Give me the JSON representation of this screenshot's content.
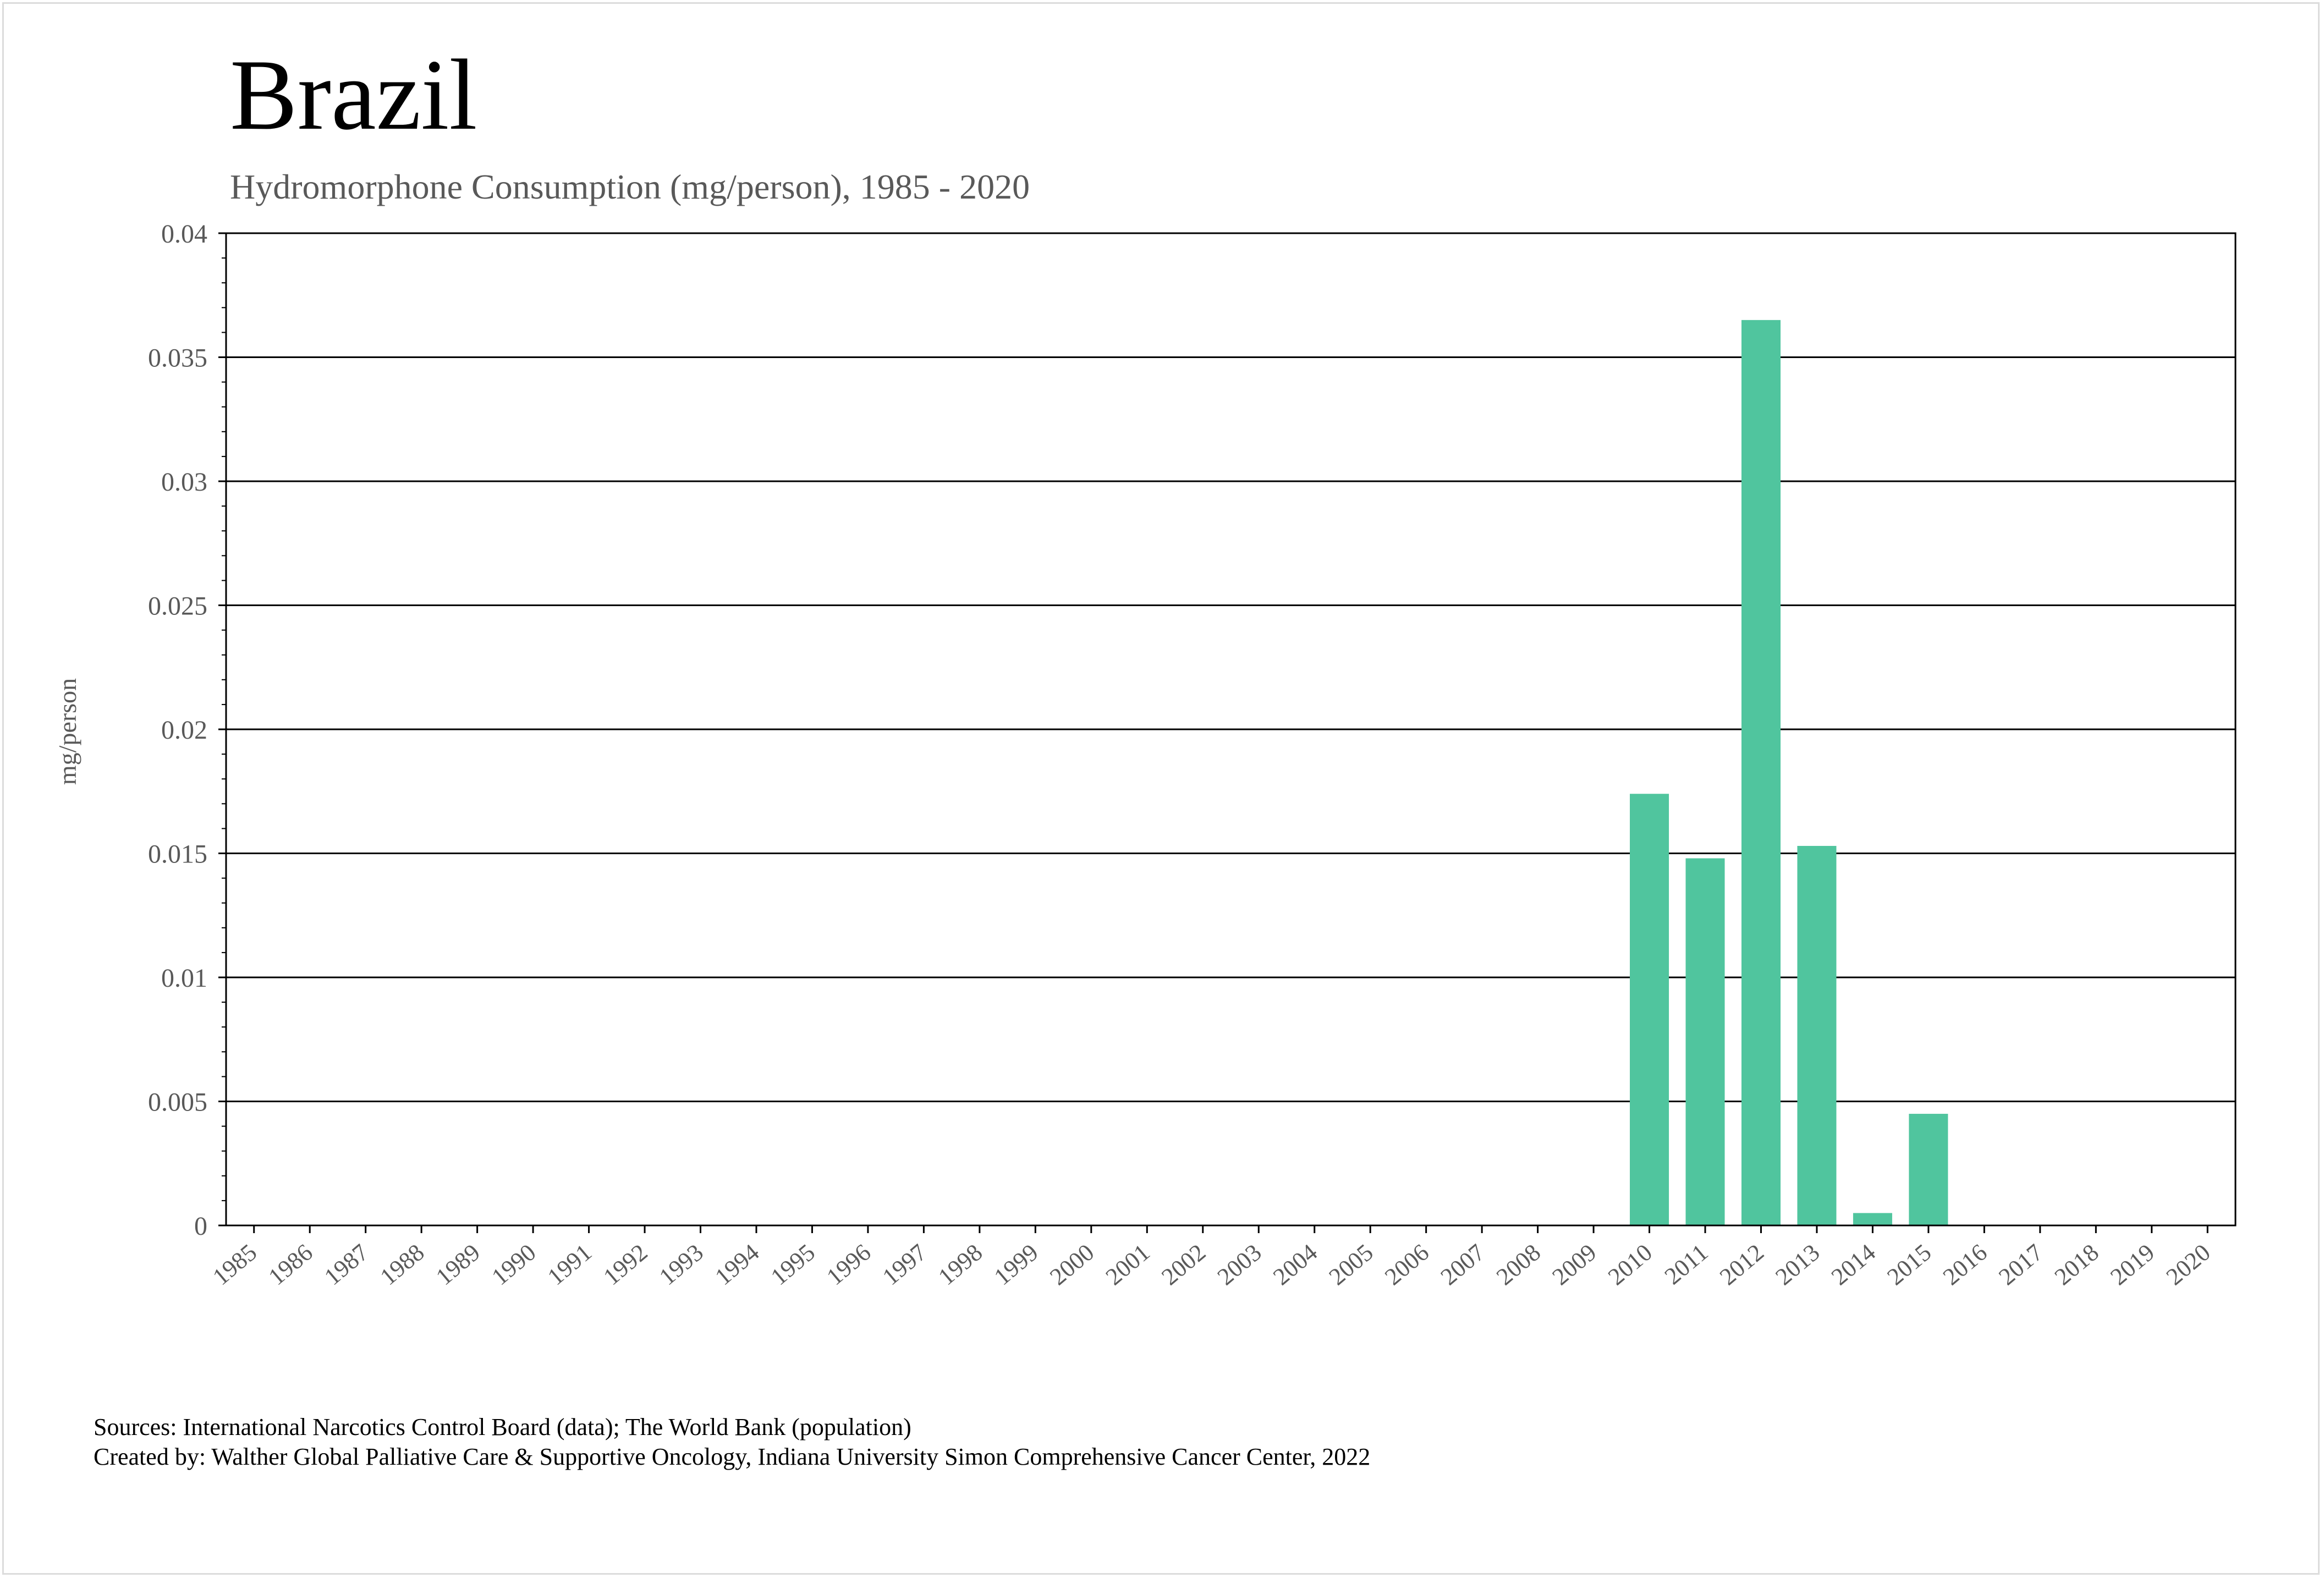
{
  "chart_data": {
    "type": "bar",
    "title": "Brazil",
    "subtitle": "Hydromorphone Consumption (mg/person), 1985 - 2020",
    "xlabel": "",
    "ylabel": "mg/person",
    "ylim": [
      0,
      0.04
    ],
    "y_ticks": [
      "0",
      "0.005",
      "0.01",
      "0.015",
      "0.02",
      "0.025",
      "0.03",
      "0.035",
      "0.04"
    ],
    "categories": [
      "1985",
      "1986",
      "1987",
      "1988",
      "1989",
      "1990",
      "1991",
      "1992",
      "1993",
      "1994",
      "1995",
      "1996",
      "1997",
      "1998",
      "1999",
      "2000",
      "2001",
      "2002",
      "2003",
      "2004",
      "2005",
      "2006",
      "2007",
      "2008",
      "2009",
      "2010",
      "2011",
      "2012",
      "2013",
      "2014",
      "2015",
      "2016",
      "2017",
      "2018",
      "2019",
      "2020"
    ],
    "values": [
      0,
      0,
      0,
      0,
      0,
      0,
      0,
      0,
      0,
      0,
      0,
      0,
      0,
      0,
      0,
      0,
      0,
      0,
      0,
      0,
      0,
      0,
      0,
      0,
      0,
      0.0174,
      0.0148,
      0.0365,
      0.0153,
      0.0005,
      0.0045,
      0,
      0,
      0,
      0,
      0
    ],
    "grid": true,
    "legend": "none",
    "bar_color": "#50c59e"
  },
  "footer": {
    "sources": "Sources: International Narcotics Control Board (data); The World Bank (population)",
    "created_by": "Created by: Walther Global Palliative Care & Supportive Oncology, Indiana University Simon Comprehensive Cancer Center, 2022"
  }
}
